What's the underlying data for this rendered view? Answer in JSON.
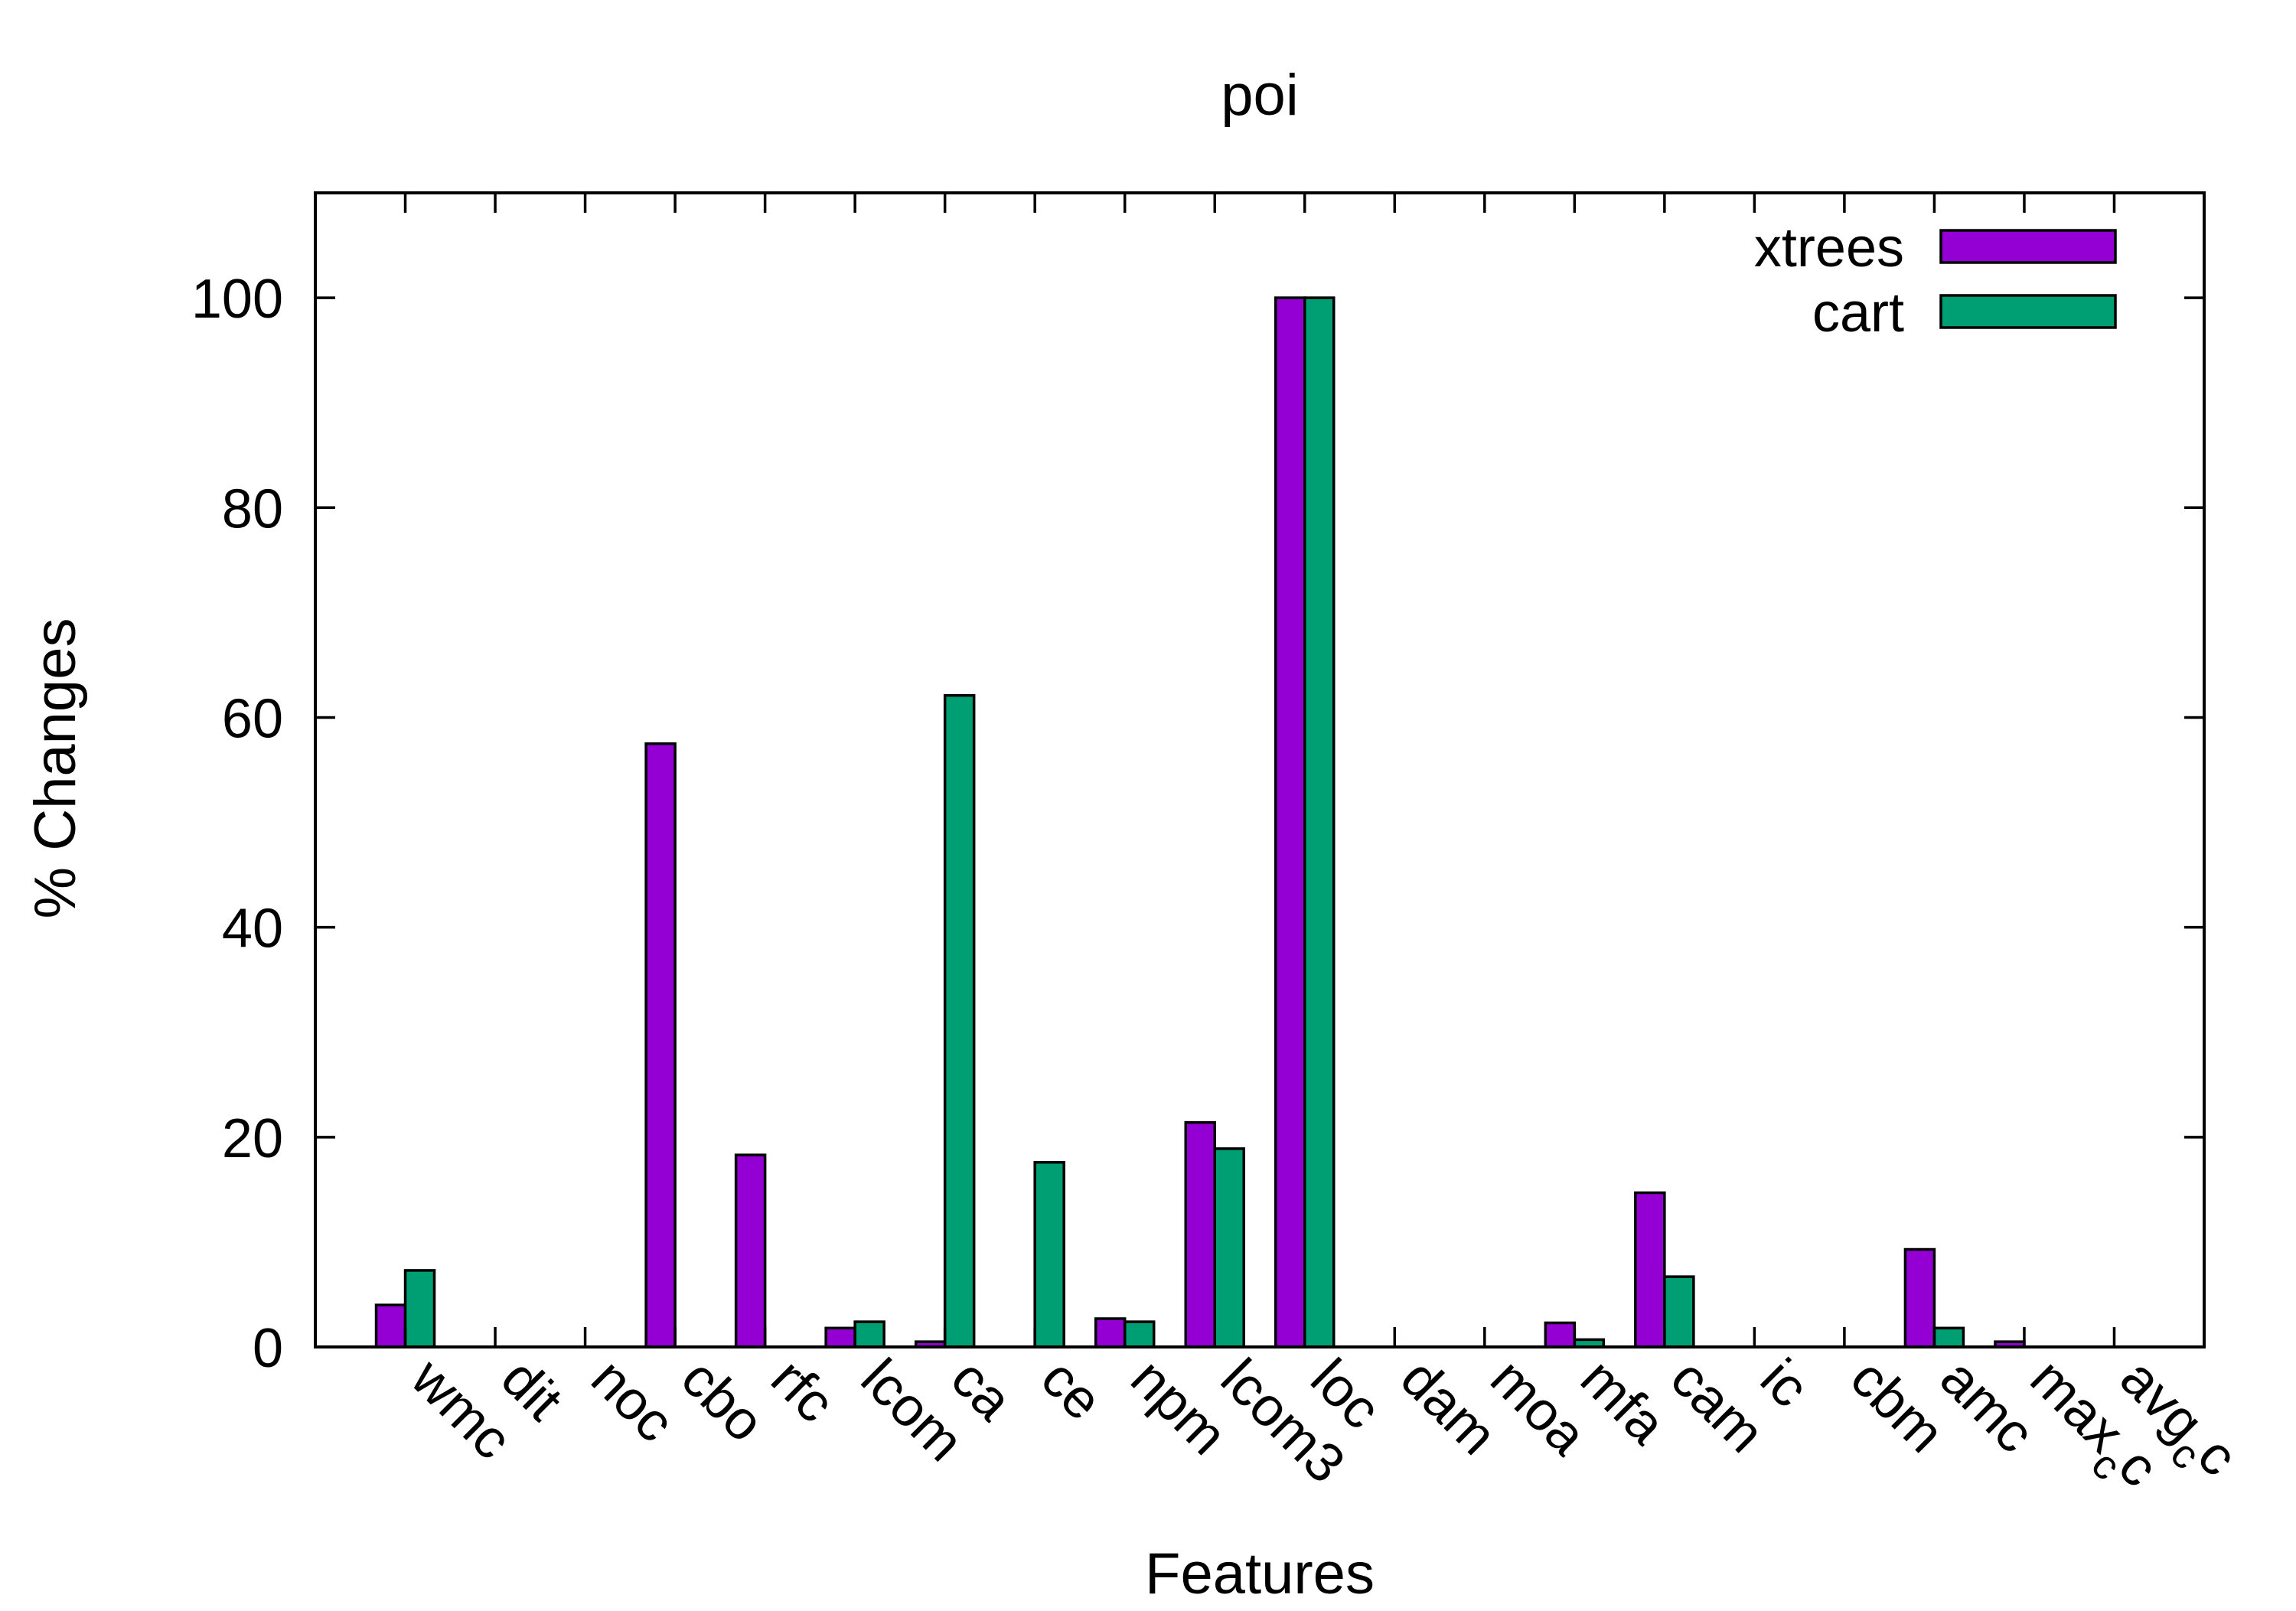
{
  "chart_data": {
    "type": "bar",
    "title": "poi",
    "xlabel": "Features",
    "ylabel": "% Changes",
    "ylim": [
      0,
      110
    ],
    "yticks": [
      0,
      20,
      40,
      60,
      80,
      100
    ],
    "grid": false,
    "legend_position": "top-right",
    "categories": [
      {
        "text": "wmc"
      },
      {
        "text": "dit"
      },
      {
        "text": "noc"
      },
      {
        "text": "cbo"
      },
      {
        "text": "rfc"
      },
      {
        "text": "lcom"
      },
      {
        "text": "ca"
      },
      {
        "text": "ce"
      },
      {
        "text": "npm"
      },
      {
        "text": "lcom3"
      },
      {
        "text": "loc"
      },
      {
        "text": "dam"
      },
      {
        "text": "moa"
      },
      {
        "text": "mfa"
      },
      {
        "text": "cam"
      },
      {
        "text": "ic"
      },
      {
        "text": "cbm"
      },
      {
        "text": "amc"
      },
      {
        "text": "max",
        "sub": "c",
        "tail": "c"
      },
      {
        "text": "avg",
        "sub": "c",
        "tail": "c"
      }
    ],
    "series": [
      {
        "name": "xtrees",
        "color": "#9400d3",
        "values": [
          4,
          0,
          0,
          57.5,
          18.3,
          1.8,
          0.5,
          0,
          2.7,
          21.4,
          100,
          0,
          0,
          2.3,
          14.7,
          0,
          0,
          9.3,
          0.5,
          0
        ]
      },
      {
        "name": "cart",
        "color": "#009e73",
        "values": [
          7.3,
          0,
          0,
          0,
          0,
          2.4,
          62.1,
          17.6,
          2.4,
          18.9,
          100,
          0,
          0,
          0.7,
          6.7,
          0,
          0,
          1.8,
          0,
          0
        ]
      }
    ]
  }
}
